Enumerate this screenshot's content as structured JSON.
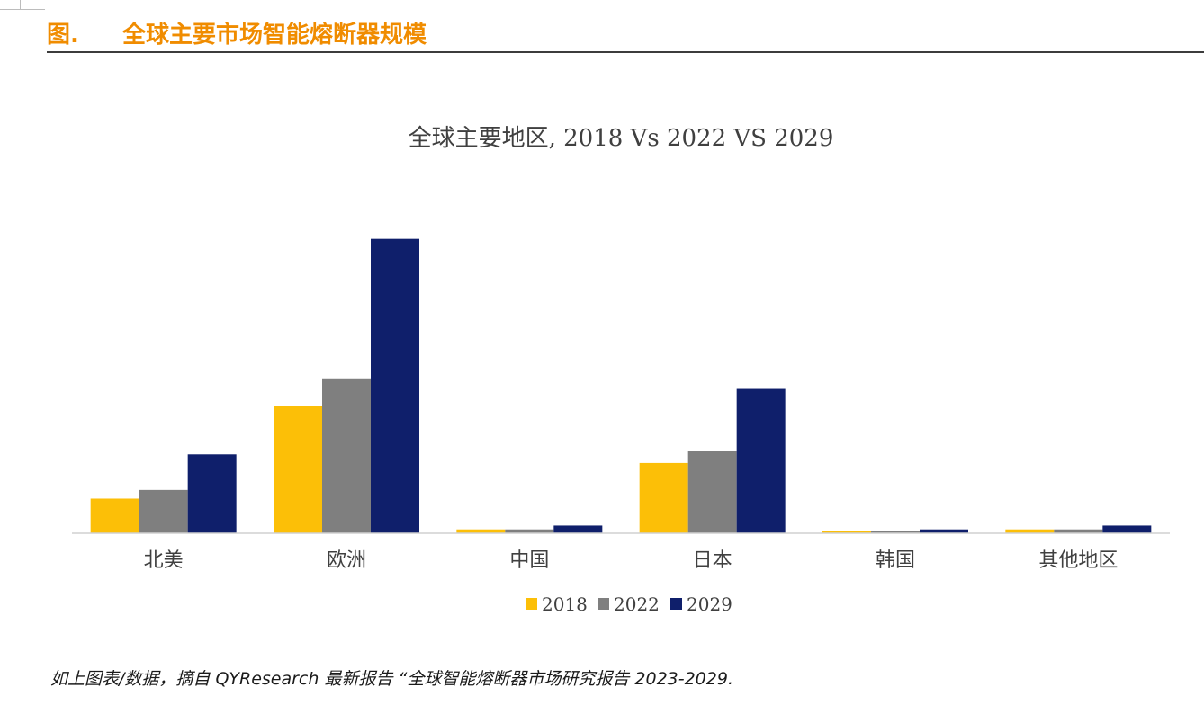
{
  "header": {
    "fig_label": "图.",
    "title": "全球主要市场智能熔断器规模"
  },
  "footer": {
    "note": "如上图表/数据，摘自 QYResearch 最新报告 “全球智能熔断器市场研究报告 2023-2029."
  },
  "colors": {
    "accent": "#f08c00",
    "series_2018": "#fcbf07",
    "series_2022": "#7f7f7f",
    "series_2029": "#0f1f6b"
  },
  "chart_data": {
    "type": "bar",
    "title": "全球主要地区, 2018 Vs 2022 VS 2029",
    "categories": [
      "北美",
      "欧洲",
      "中国",
      "日本",
      "韩国",
      "其他地区"
    ],
    "series": [
      {
        "name": "2018",
        "color": "#fcbf07",
        "values": [
          36,
          132,
          4,
          73,
          2,
          4
        ]
      },
      {
        "name": "2022",
        "color": "#7f7f7f",
        "values": [
          45,
          161,
          4,
          86,
          2,
          4
        ]
      },
      {
        "name": "2029",
        "color": "#0f1f6b",
        "values": [
          82,
          306,
          8,
          150,
          4,
          8
        ]
      }
    ],
    "ylim": [
      0,
      330
    ],
    "xlabel": "",
    "ylabel": "",
    "legend_position": "bottom",
    "grid": false
  }
}
